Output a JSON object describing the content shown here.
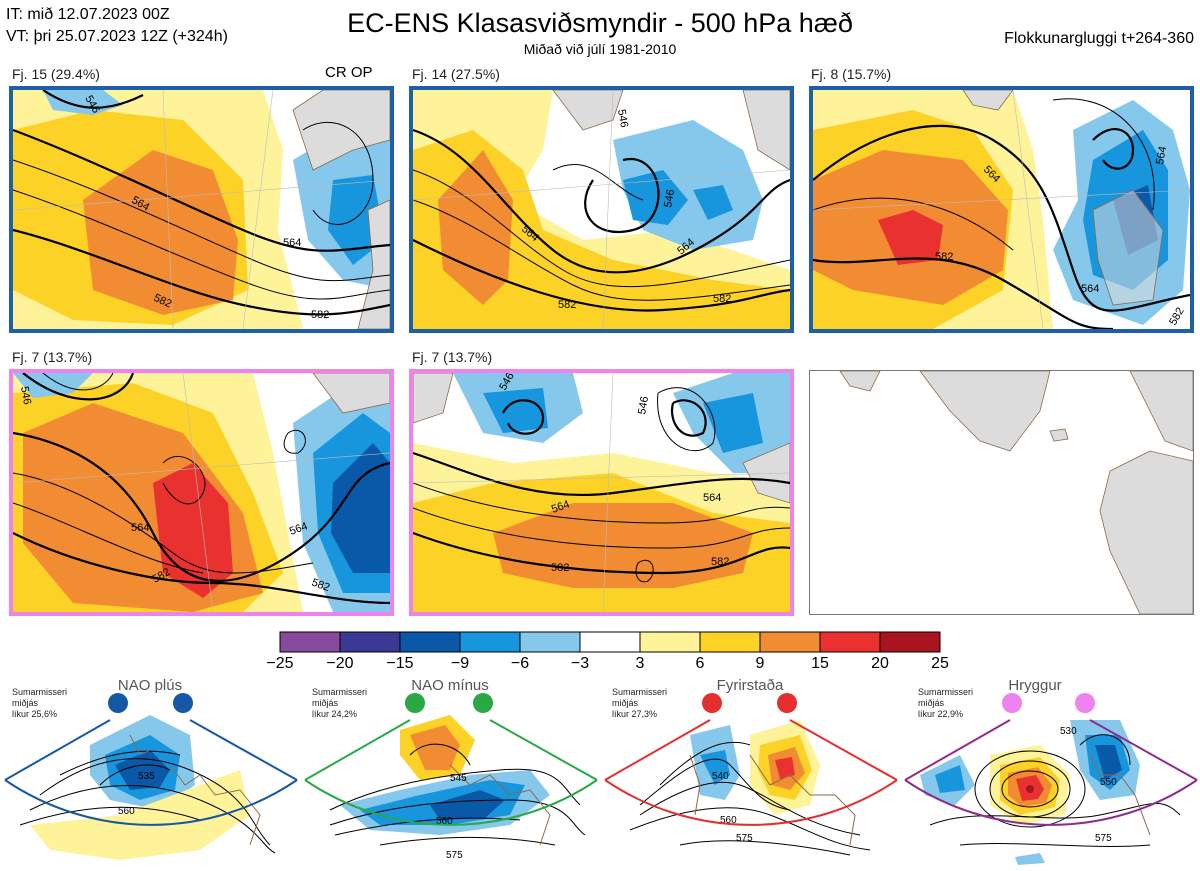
{
  "header": {
    "init_line": "IT: mið 12.07.2023 00Z",
    "valid_line": "VT: þri 25.07.2023 12Z  (+324h)",
    "title": "EC-ENS Klasasviðsmyndir - 500 hPa hæð",
    "subtitle": "Miðað við júlí 1981-2010",
    "window": "Flokkunargluggi t+264-360"
  },
  "colors": {
    "blue_frame": "#1f5fa6",
    "pink_frame": "#ee82ee",
    "land": "#dcdcdc",
    "coast": "#8b6a4c"
  },
  "panels": [
    {
      "label": "Fj. 15 (29.4%)",
      "badge": "CR OP",
      "frame": "blue",
      "contour_labels": [
        "546",
        "564",
        "564",
        "582",
        "582"
      ]
    },
    {
      "label": "Fj. 14 (27.5%)",
      "badge": "",
      "frame": "blue",
      "contour_labels": [
        "546",
        "546",
        "564",
        "564",
        "582",
        "582"
      ]
    },
    {
      "label": "Fj. 8 (15.7%)",
      "badge": "",
      "frame": "blue",
      "contour_labels": [
        "564",
        "564",
        "582",
        "564",
        "582"
      ]
    },
    {
      "label": "Fj. 7 (13.7%)",
      "badge": "",
      "frame": "pink",
      "contour_labels": [
        "546",
        "564",
        "564",
        "582",
        "582"
      ]
    },
    {
      "label": "Fj. 7 (13.7%)",
      "badge": "",
      "frame": "pink",
      "contour_labels": [
        "546",
        "546",
        "564",
        "564",
        "582",
        "582"
      ]
    }
  ],
  "colorbar": {
    "ticks": [
      "−25",
      "−20",
      "−15",
      "−9",
      "−6",
      "−3",
      "3",
      "6",
      "9",
      "15",
      "20",
      "25"
    ],
    "colors": [
      "#884a9c",
      "#3b3896",
      "#0a59a8",
      "#1796de",
      "#85c8ec",
      "#ffffff",
      "#fff39a",
      "#fcd226",
      "#f28c33",
      "#e93230",
      "#a9141e"
    ]
  },
  "regimes": [
    {
      "name": "NAO plús",
      "season": "Sumarmisseri",
      "center": "miðjás",
      "likelihood": "líkur 25,6%",
      "color": "#1558a6",
      "dot": "#1558a6",
      "contour_labels": [
        "535",
        "560"
      ]
    },
    {
      "name": "NAO mínus",
      "season": "Sumarmisseri",
      "center": "miðjás",
      "likelihood": "líkur 24,2%",
      "color": "#29a845",
      "dot": "#29a845",
      "contour_labels": [
        "545",
        "560",
        "575"
      ]
    },
    {
      "name": "Fyrirstaða",
      "season": "Sumarmisseri",
      "center": "miðjás",
      "likelihood": "líkur 27,3%",
      "color": "#e52e2e",
      "dot": "#e52e2e",
      "contour_labels": [
        "540",
        "560",
        "575"
      ]
    },
    {
      "name": "Hryggur",
      "season": "Sumarmisseri",
      "center": "miðjás",
      "likelihood": "líkur 22,9%",
      "color": "#8e2c8e",
      "dot": "#ee82ee",
      "contour_labels": [
        "530",
        "550",
        "575"
      ]
    }
  ]
}
